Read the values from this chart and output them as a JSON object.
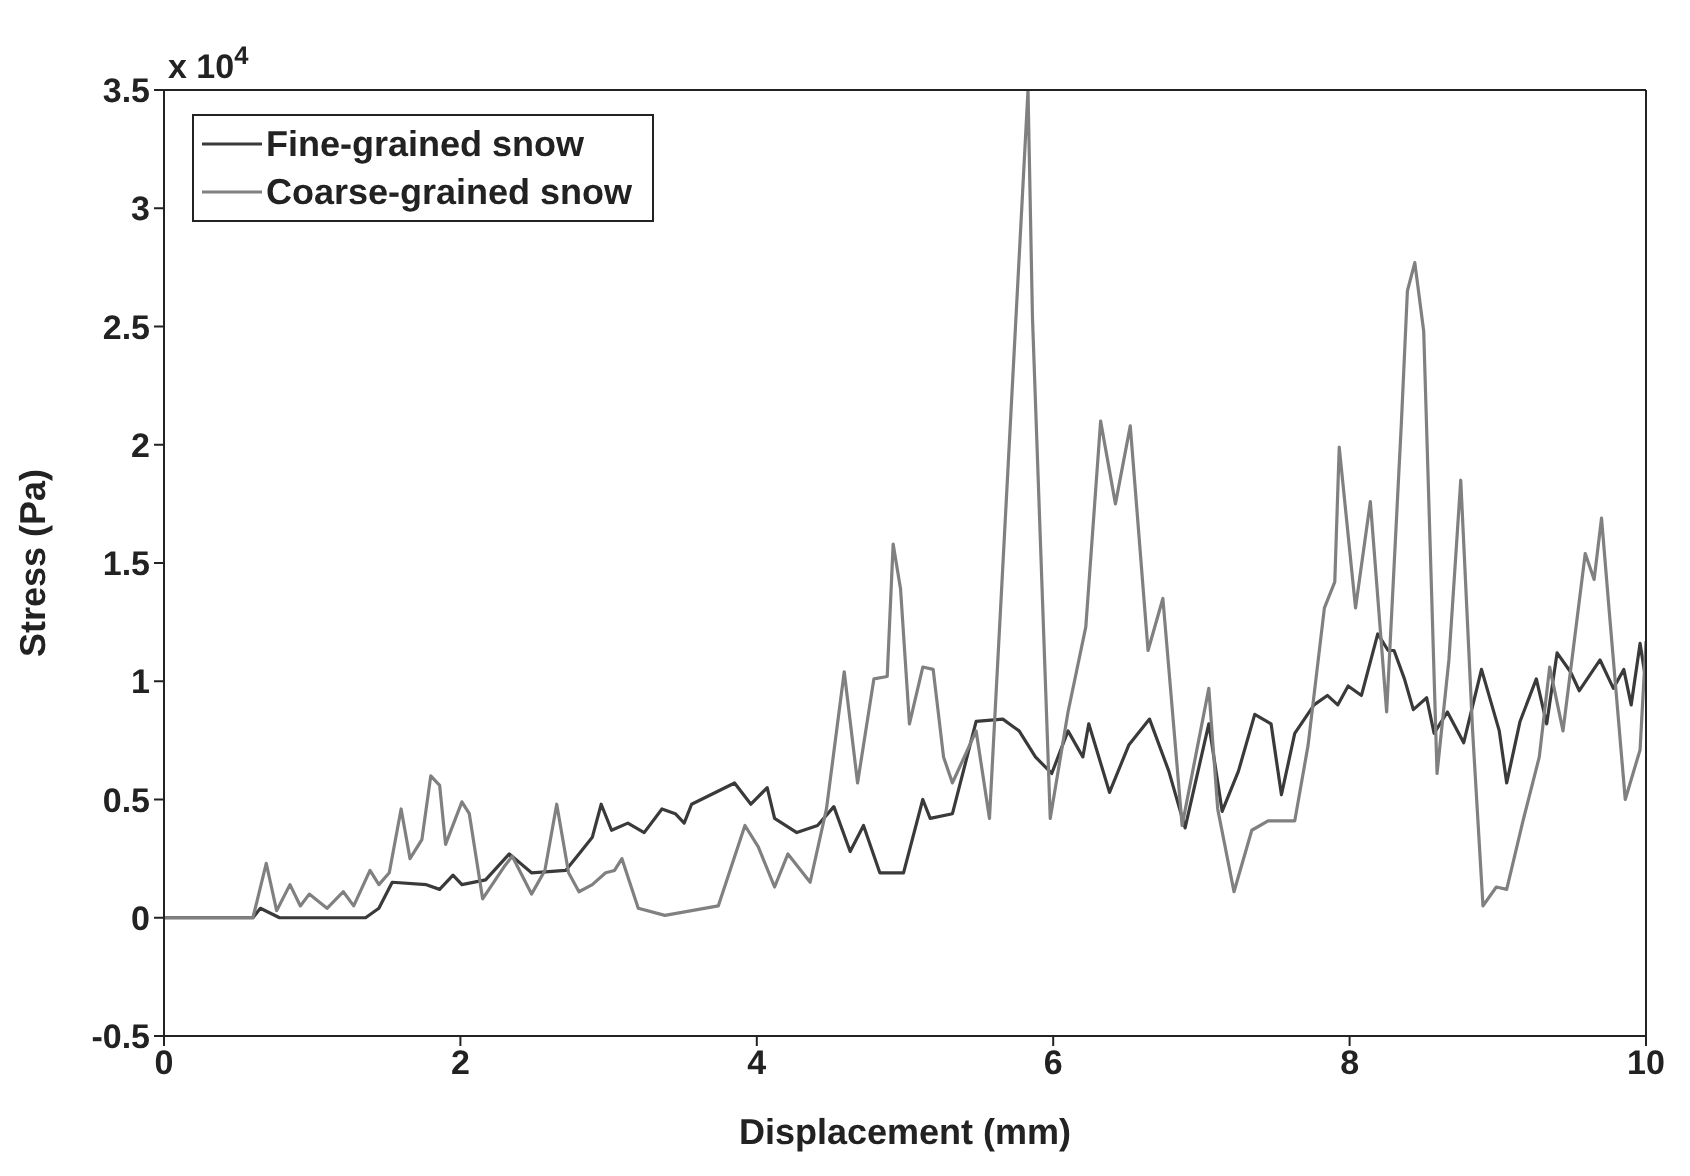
{
  "chart_data": {
    "type": "line",
    "xlabel": "Displacement (mm)",
    "ylabel": "Stress (Pa)",
    "annotations": [
      "x 10$^{4}$"
    ],
    "xlim": [
      0,
      10
    ],
    "xticks": [
      0,
      2,
      4,
      6,
      8,
      10
    ],
    "ylim": [
      -0.5,
      3.5
    ],
    "yticks": [
      -0.5,
      0,
      0.5,
      1,
      1.5,
      2,
      2.5,
      3,
      3.5
    ],
    "grid": false,
    "legend": "top left",
    "marker": "none",
    "line_style": "solid",
    "series": [
      {
        "name": "Fine-grained snow",
        "color": "#3a3a3a",
        "x": [
          0,
          0.6,
          0.65,
          0.78,
          1.0,
          1.19,
          1.36,
          1.45,
          1.54,
          1.77,
          1.86,
          1.95,
          2.01,
          2.17,
          2.33,
          2.48,
          2.71,
          2.8,
          2.89,
          2.95,
          3.02,
          3.13,
          3.24,
          3.36,
          3.45,
          3.51,
          3.56,
          3.85,
          3.96,
          4.07,
          4.12,
          4.27,
          4.41,
          4.52,
          4.63,
          4.72,
          4.83,
          4.99,
          5.12,
          5.17,
          5.32,
          5.48,
          5.66,
          5.77,
          5.88,
          5.99,
          6.1,
          6.2,
          6.24,
          6.38,
          6.51,
          6.65,
          6.78,
          6.89,
          7.05,
          7.14,
          7.25,
          7.36,
          7.47,
          7.54,
          7.63,
          7.76,
          7.85,
          7.92,
          7.99,
          8.08,
          8.19,
          8.26,
          8.3,
          8.37,
          8.43,
          8.52,
          8.57,
          8.66,
          8.77,
          8.89,
          9.01,
          9.06,
          9.15,
          9.26,
          9.33,
          9.4,
          9.49,
          9.55,
          9.69,
          9.78,
          9.85,
          9.9,
          9.96,
          10
        ],
        "values": [
          0,
          0,
          0.04,
          0,
          0,
          0,
          0,
          0.04,
          0.15,
          0.14,
          0.12,
          0.18,
          0.14,
          0.16,
          0.27,
          0.19,
          0.2,
          0.27,
          0.34,
          0.48,
          0.37,
          0.4,
          0.36,
          0.46,
          0.44,
          0.4,
          0.48,
          0.57,
          0.48,
          0.55,
          0.42,
          0.36,
          0.39,
          0.47,
          0.28,
          0.39,
          0.19,
          0.19,
          0.5,
          0.42,
          0.44,
          0.83,
          0.84,
          0.79,
          0.68,
          0.61,
          0.79,
          0.68,
          0.82,
          0.53,
          0.73,
          0.84,
          0.62,
          0.38,
          0.82,
          0.45,
          0.62,
          0.86,
          0.82,
          0.52,
          0.78,
          0.9,
          0.94,
          0.9,
          0.98,
          0.94,
          1.2,
          1.13,
          1.13,
          1.01,
          0.88,
          0.93,
          0.78,
          0.87,
          0.74,
          1.05,
          0.79,
          0.57,
          0.83,
          1.01,
          0.82,
          1.12,
          1.04,
          0.96,
          1.09,
          0.97,
          1.05,
          0.9,
          1.16,
          1.0
        ]
      },
      {
        "name": "Coarse-grained snow",
        "color": "#808080",
        "x": [
          0,
          0.6,
          0.69,
          0.76,
          0.85,
          0.92,
          0.98,
          1.1,
          1.21,
          1.28,
          1.39,
          1.45,
          1.52,
          1.6,
          1.66,
          1.74,
          1.8,
          1.86,
          1.9,
          2.01,
          2.06,
          2.15,
          2.3,
          2.35,
          2.48,
          2.57,
          2.65,
          2.73,
          2.8,
          2.89,
          2.98,
          3.04,
          3.09,
          3.2,
          3.38,
          3.56,
          3.74,
          3.92,
          4.01,
          4.12,
          4.21,
          4.36,
          4.47,
          4.59,
          4.68,
          4.79,
          4.88,
          4.92,
          4.97,
          5.03,
          5.12,
          5.19,
          5.26,
          5.32,
          5.48,
          5.57,
          5.83,
          5.86,
          5.98,
          6.1,
          6.22,
          6.32,
          6.42,
          6.52,
          6.64,
          6.74,
          6.87,
          7.05,
          7.11,
          7.22,
          7.34,
          7.45,
          7.63,
          7.72,
          7.83,
          7.9,
          7.93,
          8.04,
          8.14,
          8.25,
          8.35,
          8.39,
          8.44,
          8.5,
          8.59,
          8.67,
          8.75,
          8.83,
          8.9,
          8.99,
          9.06,
          9.17,
          9.28,
          9.35,
          9.44,
          9.59,
          9.65,
          9.7,
          9.75,
          9.86,
          9.96,
          10
        ],
        "values": [
          0,
          0,
          0.23,
          0.03,
          0.14,
          0.05,
          0.1,
          0.04,
          0.11,
          0.05,
          0.2,
          0.14,
          0.19,
          0.46,
          0.25,
          0.33,
          0.6,
          0.56,
          0.31,
          0.49,
          0.44,
          0.08,
          0.22,
          0.26,
          0.1,
          0.2,
          0.48,
          0.19,
          0.11,
          0.14,
          0.19,
          0.2,
          0.25,
          0.04,
          0.01,
          0.03,
          0.05,
          0.39,
          0.3,
          0.13,
          0.27,
          0.15,
          0.46,
          1.04,
          0.57,
          1.01,
          1.02,
          1.58,
          1.39,
          0.82,
          1.06,
          1.05,
          0.68,
          0.57,
          0.79,
          0.42,
          3.5,
          2.54,
          0.42,
          0.87,
          1.23,
          2.1,
          1.75,
          2.08,
          1.13,
          1.35,
          0.39,
          0.97,
          0.46,
          0.11,
          0.37,
          0.41,
          0.41,
          0.73,
          1.31,
          1.42,
          1.99,
          1.31,
          1.76,
          0.87,
          2.1,
          2.65,
          2.77,
          2.48,
          0.61,
          1.09,
          1.85,
          0.79,
          0.05,
          0.13,
          0.12,
          0.41,
          0.68,
          1.06,
          0.79,
          1.54,
          1.43,
          1.69,
          1.31,
          0.5,
          0.71,
          1.17
        ]
      }
    ]
  }
}
